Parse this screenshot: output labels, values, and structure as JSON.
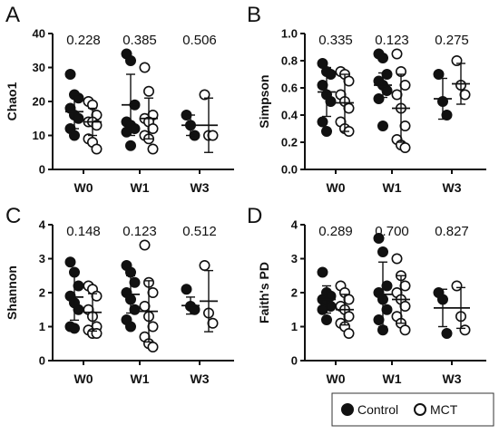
{
  "chart_data": [
    {
      "panel": "A",
      "type": "scatter",
      "ylabel": "Chao1",
      "ylim": [
        0,
        40
      ],
      "yticks": [
        0,
        10,
        20,
        30,
        40
      ],
      "categories": [
        "W0",
        "W1",
        "W3"
      ],
      "pvalues": [
        "0.228",
        "0.385",
        "0.506"
      ],
      "series": [
        {
          "name": "Control",
          "points": [
            [
              28,
              22,
              21,
              18,
              16,
              15,
              12,
              10
            ],
            [
              34,
              32,
              19,
              14,
              13,
              12,
              11,
              7
            ],
            [
              16,
              13,
              10
            ]
          ],
          "mean": [
            17,
            19,
            13
          ],
          "sd": [
            5,
            9,
            3
          ]
        },
        {
          "name": "MCT",
          "points": [
            [
              20,
              19,
              16,
              14,
              14,
              13,
              9,
              8,
              6
            ],
            [
              30,
              23,
              16,
              15,
              14,
              12,
              10,
              9,
              6
            ],
            [
              22,
              10,
              10
            ]
          ],
          "mean": [
            14,
            15,
            13
          ],
          "sd": [
            4,
            6,
            8
          ]
        }
      ]
    },
    {
      "panel": "B",
      "type": "scatter",
      "ylabel": "Simpson",
      "ylim": [
        0,
        1
      ],
      "yticks": [
        0.0,
        0.2,
        0.4,
        0.6,
        0.8,
        1.0
      ],
      "categories": [
        "W0",
        "W1",
        "W3"
      ],
      "pvalues": [
        "0.335",
        "0.123",
        "0.275"
      ],
      "series": [
        {
          "name": "Control",
          "points": [
            [
              0.78,
              0.72,
              0.7,
              0.62,
              0.55,
              0.5,
              0.35,
              0.28
            ],
            [
              0.85,
              0.82,
              0.7,
              0.65,
              0.62,
              0.58,
              0.52,
              0.32
            ],
            [
              0.7,
              0.5,
              0.4
            ]
          ],
          "mean": [
            0.57,
            0.62,
            0.52
          ],
          "sd": [
            0.18,
            0.09,
            0.15
          ]
        },
        {
          "name": "MCT",
          "points": [
            [
              0.72,
              0.7,
              0.65,
              0.55,
              0.5,
              0.45,
              0.35,
              0.3,
              0.28
            ],
            [
              0.85,
              0.72,
              0.62,
              0.55,
              0.45,
              0.32,
              0.22,
              0.18,
              0.16
            ],
            [
              0.8,
              0.62,
              0.55
            ]
          ],
          "mean": [
            0.49,
            0.45,
            0.63
          ],
          "sd": [
            0.21,
            0.25,
            0.15
          ]
        }
      ]
    },
    {
      "panel": "C",
      "type": "scatter",
      "ylabel": "Shannon",
      "ylim": [
        0,
        4
      ],
      "yticks": [
        0,
        1,
        2,
        3,
        4
      ],
      "categories": [
        "W0",
        "W1",
        "W3"
      ],
      "pvalues": [
        "0.148",
        "0.123",
        "0.512"
      ],
      "series": [
        {
          "name": "Control",
          "points": [
            [
              2.9,
              2.6,
              2.2,
              1.9,
              1.7,
              1.5,
              1.0,
              0.95
            ],
            [
              2.8,
              2.6,
              2.3,
              2.0,
              1.8,
              1.5,
              1.2,
              1.0
            ],
            [
              2.1,
              1.6,
              1.5
            ]
          ],
          "mean": [
            1.87,
            1.95,
            1.62
          ],
          "sd": [
            0.68,
            0.55,
            0.25
          ]
        },
        {
          "name": "MCT",
          "points": [
            [
              2.2,
              2.1,
              1.9,
              1.5,
              1.3,
              1.0,
              0.9,
              0.8,
              0.8
            ],
            [
              3.4,
              2.3,
              2.0,
              1.6,
              1.3,
              1.0,
              0.7,
              0.5,
              0.4
            ],
            [
              2.8,
              1.4,
              1.1
            ]
          ],
          "mean": [
            1.42,
            1.45,
            1.75
          ],
          "sd": [
            0.55,
            0.9,
            0.9
          ]
        }
      ]
    },
    {
      "panel": "D",
      "type": "scatter",
      "ylabel": "Faith's PD",
      "ylim": [
        0,
        4
      ],
      "yticks": [
        0,
        1,
        2,
        3,
        4
      ],
      "categories": [
        "W0",
        "W1",
        "W3"
      ],
      "pvalues": [
        "0.289",
        "0.700",
        "0.827"
      ],
      "series": [
        {
          "name": "Control",
          "points": [
            [
              2.6,
              2.0,
              1.9,
              1.8,
              1.7,
              1.6,
              1.5,
              1.2
            ],
            [
              3.6,
              3.2,
              2.2,
              2.0,
              1.8,
              1.5,
              1.2,
              0.9
            ],
            [
              2.0,
              1.8,
              0.8
            ]
          ],
          "mean": [
            1.8,
            1.95,
            1.55
          ],
          "sd": [
            0.4,
            0.95,
            0.55
          ]
        },
        {
          "name": "MCT",
          "points": [
            [
              2.2,
              2.0,
              1.8,
              1.6,
              1.5,
              1.3,
              1.1,
              1.0,
              0.8
            ],
            [
              3.0,
              2.5,
              2.2,
              2.0,
              1.8,
              1.6,
              1.3,
              1.1,
              0.9
            ],
            [
              2.2,
              1.3,
              0.9
            ]
          ],
          "mean": [
            1.5,
            1.8,
            1.55
          ],
          "sd": [
            0.45,
            0.7,
            0.6
          ]
        }
      ]
    }
  ],
  "legend": {
    "items": [
      {
        "label": "Control",
        "marker": "filled-circle"
      },
      {
        "label": "MCT",
        "marker": "open-circle"
      }
    ]
  },
  "colors": {
    "control_fill": "#111111",
    "mct_fill": "#ffffff",
    "stroke": "#111111",
    "legend_border": "#333333"
  }
}
